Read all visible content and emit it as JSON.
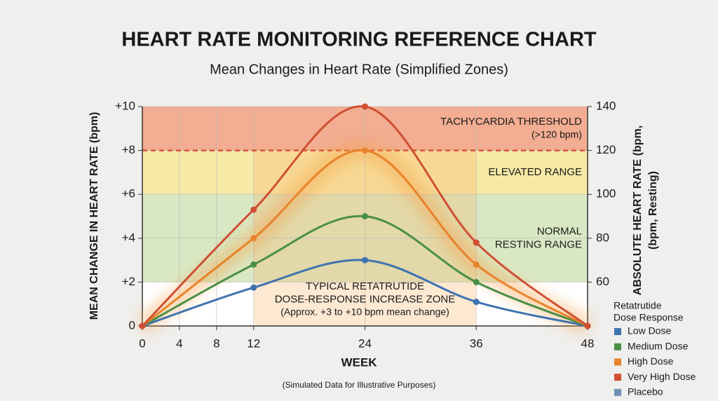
{
  "chart_data": {
    "type": "line",
    "title": "HEART RATE MONITORING REFERENCE CHART",
    "subtitle": "Mean Changes in Heart Rate (Simplified Zones)",
    "xlabel": "WEEK",
    "ylabel": "MEAN CHANGE IN HEART RATE (bpm)",
    "y2label": [
      "ABSOLUTE HEART RATE (bpm,",
      "(bpm, Resting)"
    ],
    "footnote": "(Simulated Data for Illustrative Purposes)",
    "x": [
      0,
      12,
      24,
      36,
      48
    ],
    "xlim": [
      0,
      48
    ],
    "xticks": [
      0,
      4,
      8,
      12,
      24,
      36,
      48
    ],
    "ylim": [
      0,
      10
    ],
    "yticks": [
      0,
      {
        "value": 2,
        "label": "+2"
      },
      {
        "value": 4,
        "label": "+4"
      },
      {
        "value": 6,
        "label": "+6"
      },
      {
        "value": 8,
        "label": "+8"
      },
      {
        "value": 10,
        "label": "+10"
      }
    ],
    "y2lim": [
      40,
      140
    ],
    "y2ticks": [
      60,
      80,
      100,
      120,
      140
    ],
    "grid": true,
    "legend_title": [
      "Retatrutide",
      "Dose Response"
    ],
    "legend_position": "lower right",
    "zones": [
      {
        "from": 8,
        "to": 10,
        "color": "#f2ad92",
        "label": [
          "TACHYCARDIA THRESHOLD",
          "(>120 bpm)"
        ]
      },
      {
        "from": 6,
        "to": 8,
        "color": "#f7eaa6",
        "label": [
          "ELEVATED RANGE"
        ]
      },
      {
        "from": 2,
        "to": 6,
        "color": "#d9e8c4",
        "label": [
          "NORMAL",
          "RESTING RANGE"
        ]
      }
    ],
    "threshold": {
      "value": 8,
      "color": "#d9503a"
    },
    "highlight": {
      "x": [
        12,
        36
      ],
      "color": "#f7b36b",
      "label": [
        "TYPICAL RETATRUTIDE",
        "DOSE-RESPONSE INCREASE ZONE",
        "(Approx. +3 to +10 bpm mean change)"
      ]
    },
    "series": [
      {
        "name": "Low Dose",
        "color": "#3f73b0",
        "values": [
          0,
          1.75,
          3,
          1.1,
          0
        ]
      },
      {
        "name": "Medium Dose",
        "color": "#4a8f45",
        "values": [
          0,
          2.8,
          5,
          2,
          0
        ]
      },
      {
        "name": "High Dose",
        "color": "#e8822a",
        "values": [
          0,
          4,
          8,
          2.8,
          0
        ]
      },
      {
        "name": "Very High Dose",
        "color": "#cf4f33",
        "values": [
          0,
          5.3,
          10,
          3.8,
          0
        ]
      },
      {
        "name": "Placebo",
        "color": "#6f8fb3",
        "values": [
          null,
          null,
          null,
          null,
          null
        ]
      }
    ]
  }
}
